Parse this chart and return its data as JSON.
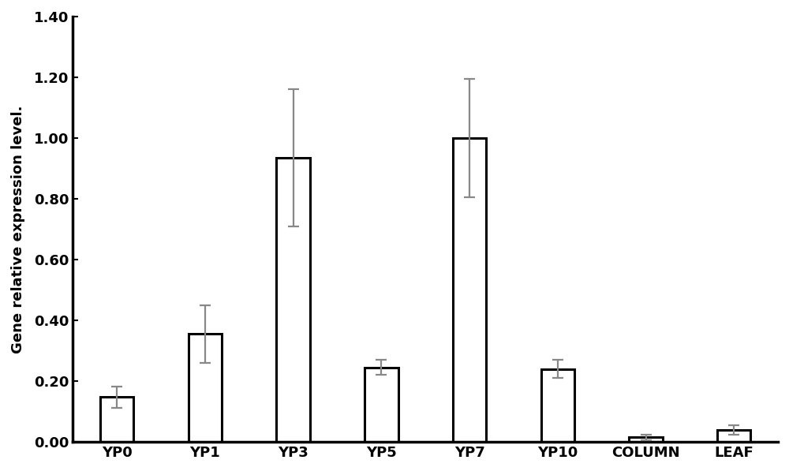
{
  "categories": [
    "YP0",
    "YP1",
    "YP3",
    "YP5",
    "YP7",
    "YP10",
    "COLUMN",
    "LEAF"
  ],
  "values": [
    0.148,
    0.355,
    0.935,
    0.245,
    1.0,
    0.24,
    0.015,
    0.04
  ],
  "errors": [
    0.035,
    0.095,
    0.225,
    0.025,
    0.195,
    0.03,
    0.01,
    0.015
  ],
  "bar_color": "#ffffff",
  "bar_edgecolor": "#000000",
  "error_color": "#888888",
  "ylabel": "Gene relative expression level.",
  "ylim": [
    0,
    1.4
  ],
  "yticks": [
    0.0,
    0.2,
    0.4,
    0.6,
    0.8,
    1.0,
    1.2,
    1.4
  ],
  "bar_width": 0.38,
  "bar_linewidth": 2.2,
  "ylabel_fontsize": 13,
  "tick_fontsize": 13,
  "xlabel_fontsize": 13,
  "background_color": "#ffffff",
  "spine_linewidth": 2.5,
  "elinewidth": 1.6,
  "capsize": 5,
  "capthick": 1.6
}
